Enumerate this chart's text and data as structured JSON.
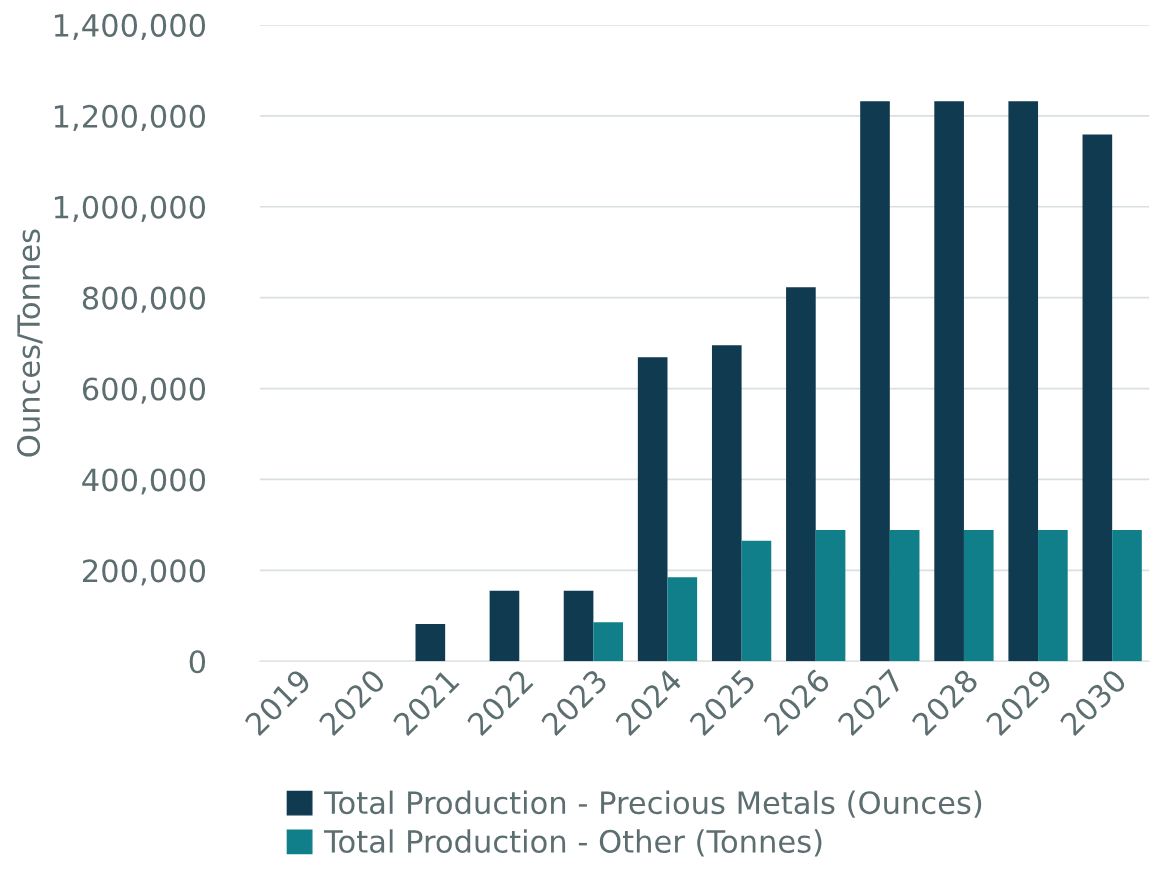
{
  "chart_data": {
    "type": "bar",
    "ylabel": "Ounces/Tonnes",
    "categories": [
      "2019",
      "2020",
      "2021",
      "2022",
      "2023",
      "2024",
      "2025",
      "2026",
      "2027",
      "2028",
      "2029",
      "2030"
    ],
    "series": [
      {
        "name": "Total Production - Precious Metals (Ounces)",
        "color": "#0f3a50",
        "values": [
          null,
          null,
          82000,
          155000,
          155000,
          669000,
          695000,
          823000,
          1232000,
          1232000,
          1232000,
          1159000
        ]
      },
      {
        "name": "Total Production - Other (Tonnes)",
        "color": "#117f8a",
        "values": [
          null,
          null,
          null,
          null,
          86000,
          185000,
          265000,
          289000,
          289000,
          289000,
          289000,
          289000
        ]
      }
    ],
    "ylim": [
      0,
      1400000
    ],
    "yticks": [
      {
        "value": 0,
        "label": "0"
      },
      {
        "value": 200000,
        "label": "200,000"
      },
      {
        "value": 400000,
        "label": "400,000"
      },
      {
        "value": 600000,
        "label": "600,000"
      },
      {
        "value": 800000,
        "label": "800,000"
      },
      {
        "value": 1000000,
        "label": "1,000,000"
      },
      {
        "value": 1200000,
        "label": "1,200,000"
      },
      {
        "value": 1400000,
        "label": "1,400,000"
      }
    ],
    "grid": "y",
    "legend": "bottom"
  }
}
